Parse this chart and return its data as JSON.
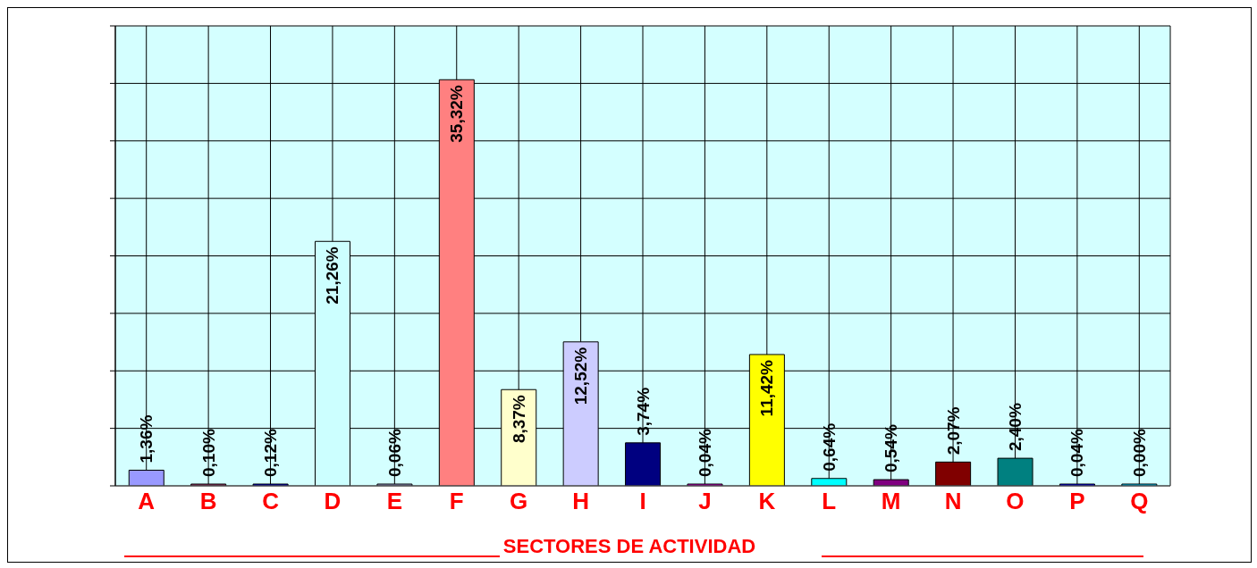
{
  "chart_data": {
    "type": "bar",
    "xlabel": "SECTORES DE ACTIVIDAD",
    "categories": [
      "A",
      "B",
      "C",
      "D",
      "E",
      "F",
      "G",
      "H",
      "I",
      "J",
      "K",
      "L",
      "M",
      "N",
      "O",
      "P",
      "Q"
    ],
    "values": [
      1.36,
      0.1,
      0.12,
      21.26,
      0.06,
      35.32,
      8.37,
      12.52,
      3.74,
      0.04,
      11.42,
      0.64,
      0.54,
      2.07,
      2.4,
      0.04,
      0.0
    ],
    "colors": [
      "#9999ff",
      "#993366",
      "#0000cc",
      "#ccffff",
      "#9999cc",
      "#ff8080",
      "#ffffcc",
      "#ccccff",
      "#000080",
      "#cc00cc",
      "#ffff00",
      "#00ffff",
      "#800080",
      "#800000",
      "#008080",
      "#0000ff",
      "#00ccff"
    ],
    "value_labels": [
      "1,36%",
      "0,10%",
      "0,12%",
      "21,26%",
      "0,06%",
      "35,32%",
      "8,37%",
      "12,52%",
      "3,74%",
      "0,04%",
      "11,42%",
      "0,64%",
      "0,54%",
      "2,07%",
      "2,40%",
      "0,04%",
      "0,00%"
    ],
    "ylim": [
      0,
      40
    ],
    "yticks": [
      {
        "value": 0,
        "label": null
      },
      {
        "value": 5,
        "label": null
      },
      {
        "value": 10,
        "label": null
      },
      {
        "value": 15,
        "label": null
      },
      {
        "value": 20,
        "label": null
      },
      {
        "value": 25,
        "label": null
      },
      {
        "value": 30,
        "label": null
      },
      {
        "value": 35,
        "label": null
      },
      {
        "value": 40,
        "label": null
      }
    ],
    "grid": true
  }
}
